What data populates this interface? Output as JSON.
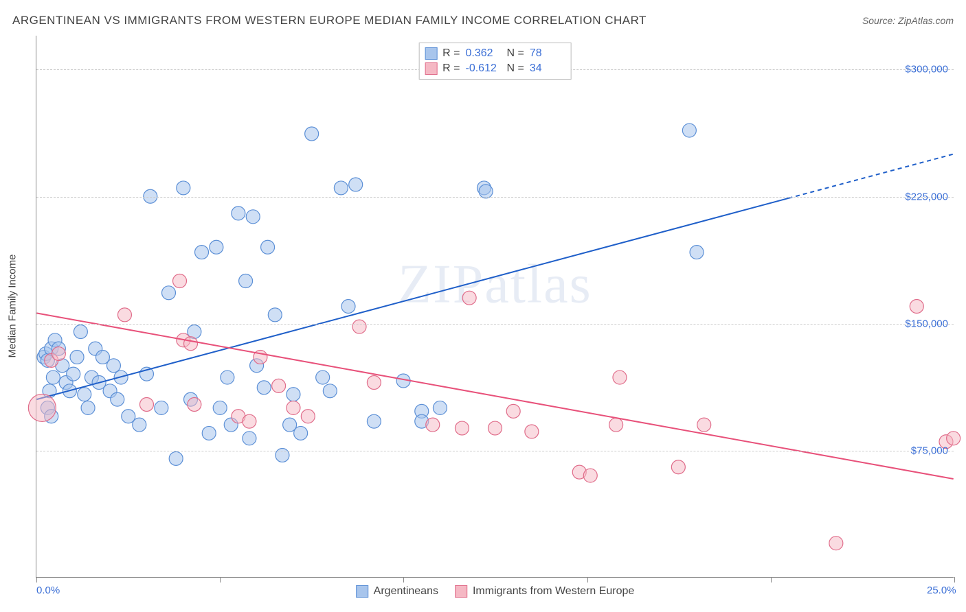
{
  "header": {
    "title": "ARGENTINEAN VS IMMIGRANTS FROM WESTERN EUROPE MEDIAN FAMILY INCOME CORRELATION CHART",
    "source_label": "Source:",
    "source_value": "ZipAtlas.com"
  },
  "watermark": "ZIPatlas",
  "chart": {
    "type": "scatter",
    "xlim": [
      0,
      25
    ],
    "ylim": [
      0,
      320000
    ],
    "x_ticks": [
      0,
      5,
      10,
      15,
      20,
      25
    ],
    "x_tick_labels": {
      "0": "0.0%",
      "25": "25.0%"
    },
    "y_gridlines": [
      75000,
      150000,
      225000,
      300000
    ],
    "y_tick_labels": {
      "75000": "$75,000",
      "150000": "$150,000",
      "225000": "$225,000",
      "300000": "$300,000"
    },
    "y_axis_title": "Median Family Income",
    "background_color": "#ffffff",
    "grid_color": "#cccccc",
    "series": [
      {
        "id": "argentineans",
        "label": "Argentineans",
        "fill_color": "#a8c5ec",
        "stroke_color": "#5b8fd6",
        "fill_opacity": 0.55,
        "marker_radius": 10,
        "correlation": {
          "R": "0.362",
          "N": "78"
        },
        "trend": {
          "x1": 0,
          "y1": 105000,
          "x2": 25,
          "y2": 250000,
          "solid_until_x": 20.5,
          "color": "#1f5fc9",
          "width": 2
        },
        "points": [
          [
            0.2,
            130000
          ],
          [
            0.25,
            132000
          ],
          [
            0.3,
            128000
          ],
          [
            0.4,
            135000
          ],
          [
            0.35,
            110000
          ],
          [
            0.45,
            118000
          ],
          [
            0.5,
            140000
          ],
          [
            0.6,
            135000
          ],
          [
            0.7,
            125000
          ],
          [
            0.8,
            115000
          ],
          [
            0.9,
            110000
          ],
          [
            1.0,
            120000
          ],
          [
            0.3,
            100000
          ],
          [
            0.4,
            95000
          ],
          [
            1.1,
            130000
          ],
          [
            1.2,
            145000
          ],
          [
            1.3,
            108000
          ],
          [
            1.4,
            100000
          ],
          [
            1.5,
            118000
          ],
          [
            1.6,
            135000
          ],
          [
            1.7,
            115000
          ],
          [
            1.8,
            130000
          ],
          [
            2.0,
            110000
          ],
          [
            2.1,
            125000
          ],
          [
            2.2,
            105000
          ],
          [
            2.3,
            118000
          ],
          [
            2.5,
            95000
          ],
          [
            2.8,
            90000
          ],
          [
            3.0,
            120000
          ],
          [
            3.1,
            225000
          ],
          [
            3.4,
            100000
          ],
          [
            3.6,
            168000
          ],
          [
            3.8,
            70000
          ],
          [
            4.0,
            230000
          ],
          [
            4.2,
            105000
          ],
          [
            4.3,
            145000
          ],
          [
            4.5,
            192000
          ],
          [
            4.7,
            85000
          ],
          [
            4.9,
            195000
          ],
          [
            5.0,
            100000
          ],
          [
            5.2,
            118000
          ],
          [
            5.3,
            90000
          ],
          [
            5.5,
            215000
          ],
          [
            5.7,
            175000
          ],
          [
            5.8,
            82000
          ],
          [
            5.9,
            213000
          ],
          [
            6.0,
            125000
          ],
          [
            6.2,
            112000
          ],
          [
            6.3,
            195000
          ],
          [
            6.5,
            155000
          ],
          [
            6.7,
            72000
          ],
          [
            6.9,
            90000
          ],
          [
            7.0,
            108000
          ],
          [
            7.2,
            85000
          ],
          [
            7.5,
            262000
          ],
          [
            7.8,
            118000
          ],
          [
            8.0,
            110000
          ],
          [
            8.3,
            230000
          ],
          [
            8.5,
            160000
          ],
          [
            8.7,
            232000
          ],
          [
            9.2,
            92000
          ],
          [
            10.0,
            116000
          ],
          [
            10.5,
            98000
          ],
          [
            10.5,
            92000
          ],
          [
            11.0,
            100000
          ],
          [
            12.2,
            230000
          ],
          [
            12.25,
            228000
          ],
          [
            17.8,
            264000
          ],
          [
            18.0,
            192000
          ]
        ]
      },
      {
        "id": "immigrants",
        "label": "Immigrants from Western Europe",
        "fill_color": "#f5b8c4",
        "stroke_color": "#e06c8a",
        "fill_opacity": 0.5,
        "marker_radius": 10,
        "correlation": {
          "R": "-0.612",
          "N": "34"
        },
        "trend": {
          "x1": 0,
          "y1": 156000,
          "x2": 25,
          "y2": 58000,
          "solid_until_x": 25,
          "color": "#e8517a",
          "width": 2
        },
        "points": [
          [
            0.15,
            100000,
            20
          ],
          [
            0.4,
            128000
          ],
          [
            0.6,
            132000
          ],
          [
            2.4,
            155000
          ],
          [
            3.0,
            102000
          ],
          [
            3.9,
            175000
          ],
          [
            4.0,
            140000
          ],
          [
            4.2,
            138000
          ],
          [
            4.3,
            102000
          ],
          [
            5.5,
            95000
          ],
          [
            5.8,
            92000
          ],
          [
            6.1,
            130000
          ],
          [
            6.6,
            113000
          ],
          [
            7.0,
            100000
          ],
          [
            7.4,
            95000
          ],
          [
            8.8,
            148000
          ],
          [
            9.2,
            115000
          ],
          [
            10.8,
            90000
          ],
          [
            11.6,
            88000
          ],
          [
            11.8,
            165000
          ],
          [
            12.5,
            88000
          ],
          [
            13.0,
            98000
          ],
          [
            13.5,
            86000
          ],
          [
            14.8,
            62000
          ],
          [
            15.1,
            60000
          ],
          [
            15.8,
            90000
          ],
          [
            15.9,
            118000
          ],
          [
            17.5,
            65000
          ],
          [
            18.2,
            90000
          ],
          [
            21.8,
            20000
          ],
          [
            24.0,
            160000
          ],
          [
            24.8,
            80000
          ],
          [
            25.0,
            82000
          ]
        ]
      }
    ],
    "bottom_legend": [
      {
        "swatch_fill": "#a8c5ec",
        "swatch_stroke": "#5b8fd6",
        "label": "Argentineans"
      },
      {
        "swatch_fill": "#f5b8c4",
        "swatch_stroke": "#e06c8a",
        "label": "Immigrants from Western Europe"
      }
    ]
  }
}
